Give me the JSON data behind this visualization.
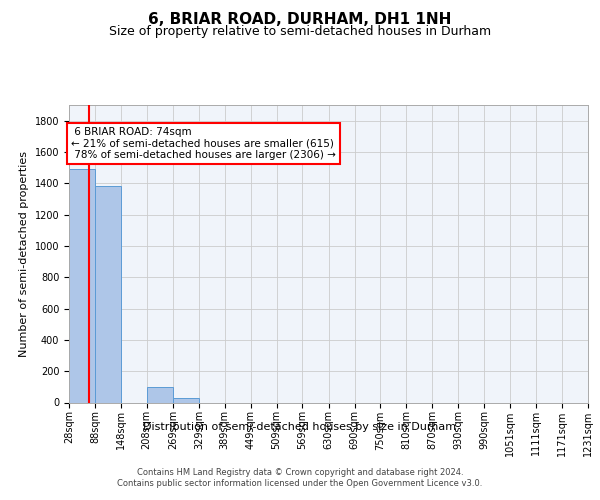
{
  "title": "6, BRIAR ROAD, DURHAM, DH1 1NH",
  "subtitle": "Size of property relative to semi-detached houses in Durham",
  "xlabel": "Distribution of semi-detached houses by size in Durham",
  "ylabel": "Number of semi-detached properties",
  "footer_line1": "Contains HM Land Registry data © Crown copyright and database right 2024.",
  "footer_line2": "Contains public sector information licensed under the Open Government Licence v3.0.",
  "bin_labels": [
    "28sqm",
    "88sqm",
    "148sqm",
    "208sqm",
    "269sqm",
    "329sqm",
    "389sqm",
    "449sqm",
    "509sqm",
    "569sqm",
    "630sqm",
    "690sqm",
    "750sqm",
    "810sqm",
    "870sqm",
    "930sqm",
    "990sqm",
    "1051sqm",
    "1111sqm",
    "1171sqm",
    "1231sqm"
  ],
  "bin_edges": [
    28,
    88,
    148,
    208,
    269,
    329,
    389,
    449,
    509,
    569,
    630,
    690,
    750,
    810,
    870,
    930,
    990,
    1051,
    1111,
    1171,
    1231
  ],
  "bar_heights": [
    1490,
    1380,
    0,
    100,
    30,
    0,
    0,
    0,
    0,
    0,
    0,
    0,
    0,
    0,
    0,
    0,
    0,
    0,
    0,
    0
  ],
  "bar_color": "#aec6e8",
  "bar_edge_color": "#5b9bd5",
  "property_sqm": 74,
  "property_label": "6 BRIAR ROAD: 74sqm",
  "pct_smaller": 21,
  "pct_smaller_n": 615,
  "pct_larger": 78,
  "pct_larger_n": 2306,
  "annotation_box_color": "#ff0000",
  "vline_color": "#ff0000",
  "ylim": [
    0,
    1900
  ],
  "yticks": [
    0,
    200,
    400,
    600,
    800,
    1000,
    1200,
    1400,
    1600,
    1800
  ],
  "grid_color": "#cccccc",
  "background_color": "#f0f4fa",
  "title_fontsize": 11,
  "subtitle_fontsize": 9,
  "axis_label_fontsize": 8,
  "tick_fontsize": 7,
  "footer_fontsize": 6,
  "annotation_fontsize": 7.5
}
